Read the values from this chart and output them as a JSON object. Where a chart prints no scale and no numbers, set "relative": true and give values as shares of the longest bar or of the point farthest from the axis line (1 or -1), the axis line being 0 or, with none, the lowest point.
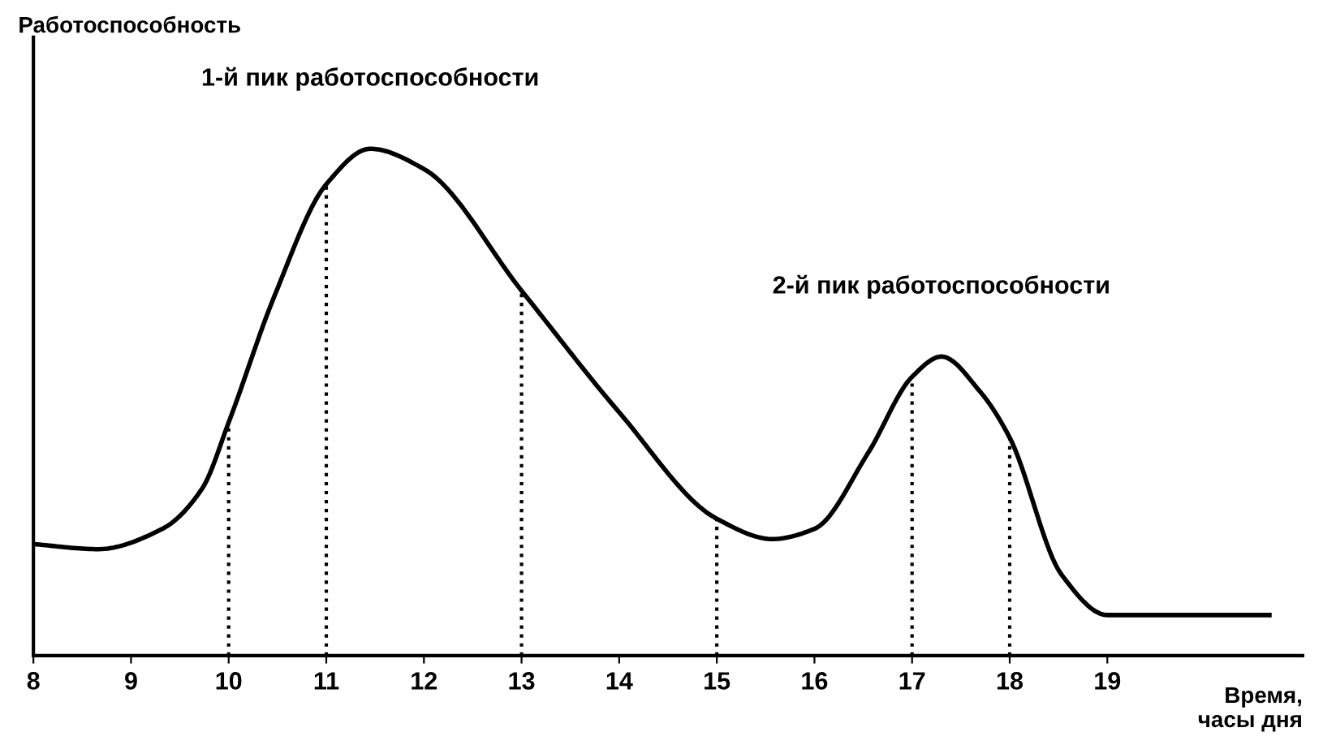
{
  "chart_data": {
    "type": "line",
    "relative": true,
    "xlabel": "Время,\nчасы дня",
    "x": [
      8.0,
      8.66,
      9.32,
      9.73,
      10.0,
      10.47,
      11.0,
      11.45,
      12.0,
      13.0,
      14.0,
      15.0,
      15.57,
      16.0,
      16.55,
      17.0,
      17.3,
      17.7,
      18.0,
      18.53,
      19.0,
      19.51,
      20.66
    ],
    "series": [
      {
        "color": "#000000",
        "values": [
          0.22,
          0.21,
          0.25,
          0.33,
          0.46,
          0.71,
          0.93,
          1.0,
          0.96,
          0.72,
          0.48,
          0.27,
          0.23,
          0.25,
          0.4,
          0.55,
          0.59,
          0.52,
          0.43,
          0.16,
          0.08,
          0.08,
          0.08
        ]
      }
    ],
    "xlim": [
      8,
      21
    ],
    "xticks": [
      8,
      9,
      10,
      11,
      12,
      13,
      14,
      15,
      16,
      17,
      18,
      19
    ],
    "tick_labels": "x",
    "grid": false,
    "legend": false,
    "marker": "none",
    "line_style": "solid",
    "ref_lines": [
      {
        "axis": "x",
        "value": 10,
        "line_style": "dotted"
      },
      {
        "axis": "x",
        "value": 11,
        "line_style": "dotted"
      },
      {
        "axis": "x",
        "value": 13,
        "line_style": "dotted"
      },
      {
        "axis": "x",
        "value": 15,
        "line_style": "dotted"
      },
      {
        "axis": "x",
        "value": 17,
        "line_style": "dotted"
      },
      {
        "axis": "x",
        "value": 18,
        "line_style": "dotted"
      }
    ],
    "annotations": [
      "Работоспособность",
      {
        "text": "1-й пик работоспособности",
        "x": 11.45,
        "y": 1.0
      },
      {
        "text": "2-й пик работоспособности",
        "x": 17.3,
        "y": 0.59
      }
    ]
  }
}
